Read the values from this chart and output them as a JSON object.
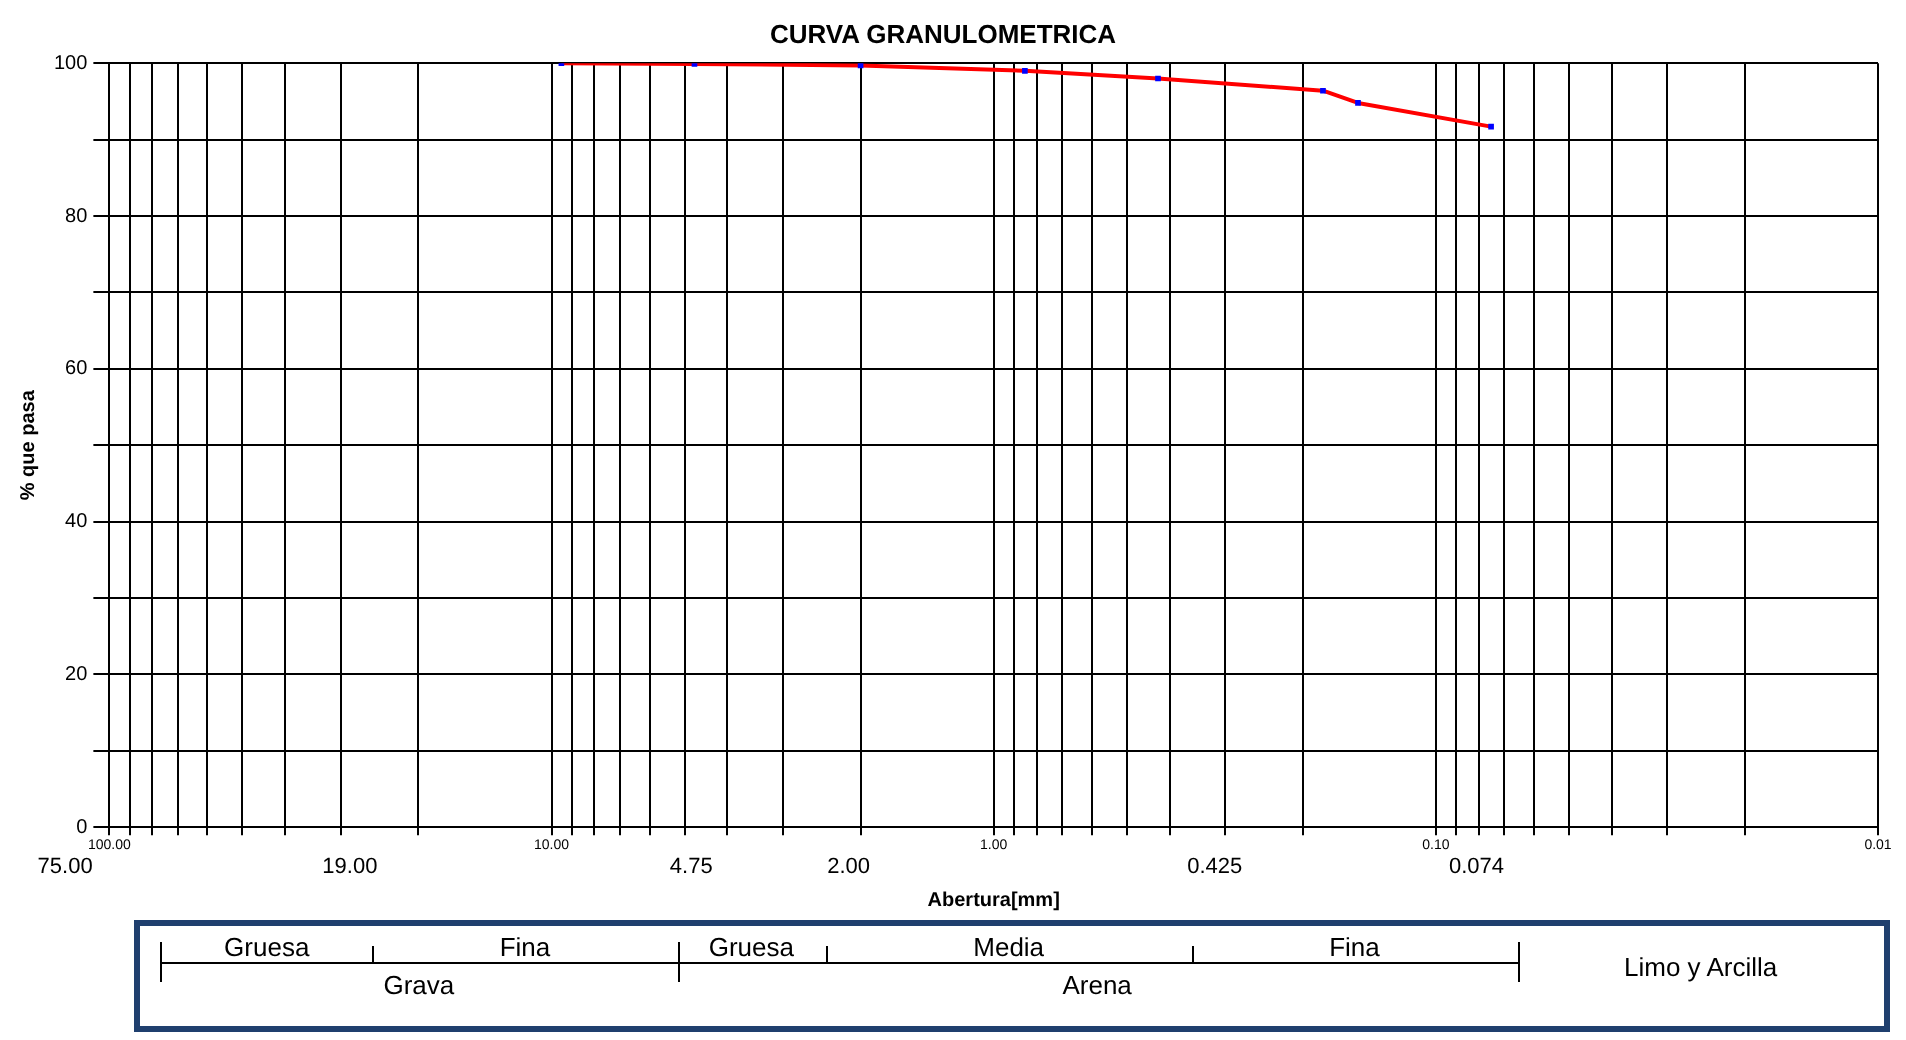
{
  "chart_data": {
    "type": "line",
    "title": "CURVA GRANULOMETRICA",
    "xlabel": "Abertura[mm]",
    "ylabel": "% que pasa",
    "x": [
      9.5,
      4.75,
      2.0,
      0.85,
      0.425,
      0.18,
      0.15,
      0.075
    ],
    "series": [
      {
        "color": "#ff0000",
        "colors": [
          "#0000ff",
          "#0000ff",
          "#0000ff",
          "#0000ff",
          "#0000ff",
          "#0000ff",
          "#0000ff",
          "#0000ff"
        ],
        "values": [
          100,
          99.9,
          99.7,
          99.0,
          98.0,
          96.4,
          94.8,
          91.7
        ]
      }
    ],
    "log": "x",
    "xlim": [
      100,
      0.01
    ],
    "xticks": [
      {
        "value": 100,
        "label": "100.00"
      },
      {
        "value": 90,
        "label": null
      },
      {
        "value": 80,
        "label": null
      },
      {
        "value": 70,
        "label": null
      },
      {
        "value": 60,
        "label": null
      },
      {
        "value": 50,
        "label": null
      },
      {
        "value": 40,
        "label": null
      },
      {
        "value": 30,
        "label": null
      },
      {
        "value": 20,
        "label": null
      },
      {
        "value": 10,
        "label": "10.00"
      },
      {
        "value": 9,
        "label": null
      },
      {
        "value": 8,
        "label": null
      },
      {
        "value": 7,
        "label": null
      },
      {
        "value": 6,
        "label": null
      },
      {
        "value": 5,
        "label": null
      },
      {
        "value": 4,
        "label": null
      },
      {
        "value": 3,
        "label": null
      },
      {
        "value": 2,
        "label": null
      },
      {
        "value": 1,
        "label": "1.00"
      },
      {
        "value": 0.9,
        "label": null
      },
      {
        "value": 0.8,
        "label": null
      },
      {
        "value": 0.7,
        "label": null
      },
      {
        "value": 0.6,
        "label": null
      },
      {
        "value": 0.5,
        "label": null
      },
      {
        "value": 0.4,
        "label": null
      },
      {
        "value": 0.3,
        "label": null
      },
      {
        "value": 0.2,
        "label": null
      },
      {
        "value": 0.1,
        "label": "0.10"
      },
      {
        "value": 0.09,
        "label": null
      },
      {
        "value": 0.08,
        "label": null
      },
      {
        "value": 0.07,
        "label": null
      },
      {
        "value": 0.06,
        "label": null
      },
      {
        "value": 0.05,
        "label": null
      },
      {
        "value": 0.04,
        "label": null
      },
      {
        "value": 0.03,
        "label": null
      },
      {
        "value": 0.02,
        "label": null
      },
      {
        "value": 0.01,
        "label": "0.01"
      }
    ],
    "ylim": [
      0,
      100
    ],
    "yticks": [
      0,
      {
        "value": 10,
        "label": null
      },
      20,
      {
        "value": 30,
        "label": null
      },
      40,
      {
        "value": 50,
        "label": null
      },
      60,
      {
        "value": 70,
        "label": null
      },
      80,
      {
        "value": 90,
        "label": null
      },
      100
    ],
    "grid": true,
    "legend": false,
    "marker": "square",
    "line_style": "solid",
    "annotations": [
      "75.00",
      "19.00",
      "4.75",
      "2.00",
      "0.425",
      "0.074",
      "Gruesa",
      "Fina",
      "Grava",
      "Gruesa",
      "Media",
      "Fina",
      "Arena",
      "Limo y Arcilla"
    ]
  }
}
